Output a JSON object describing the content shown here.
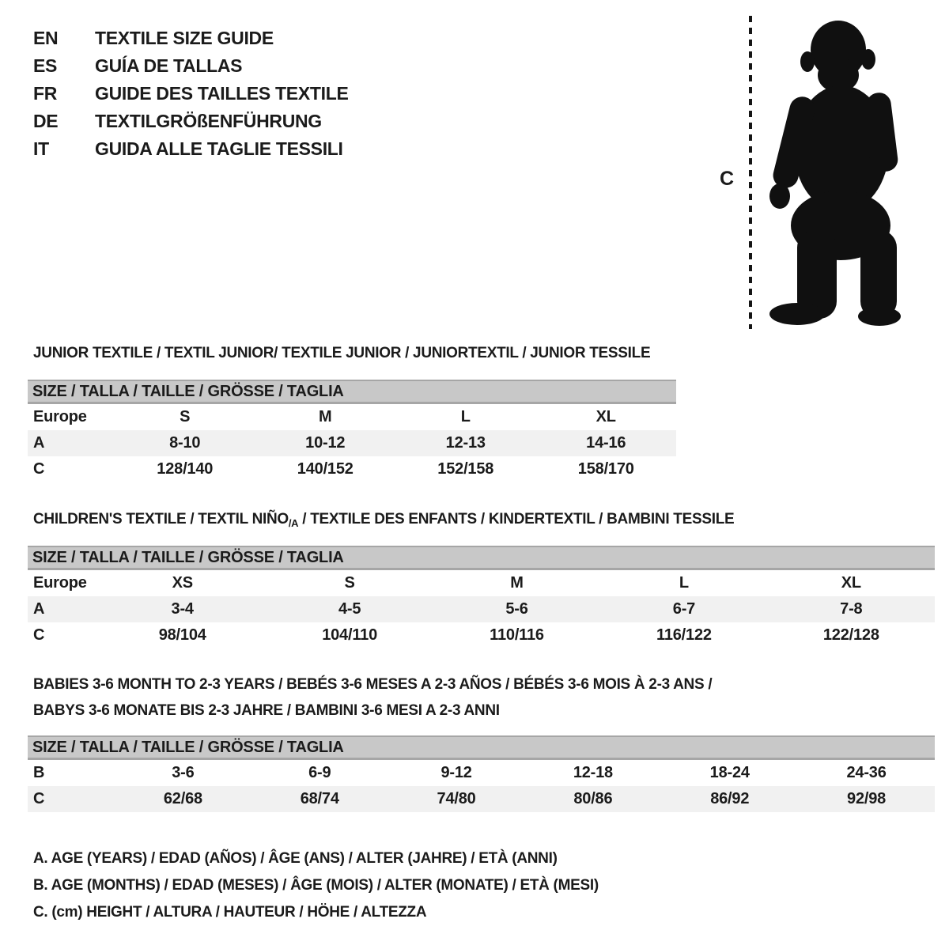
{
  "languages": [
    {
      "code": "EN",
      "title": "TEXTILE SIZE GUIDE"
    },
    {
      "code": "ES",
      "title": "GUÍA DE TALLAS"
    },
    {
      "code": "FR",
      "title": "GUIDE DES TAILLES TEXTILE"
    },
    {
      "code": "DE",
      "title": "TEXTILGRÖßENFÜHRUNG"
    },
    {
      "code": "IT",
      "title": "GUIDA ALLE TAGLIE TESSILI"
    }
  ],
  "figure": {
    "label": "C",
    "icon": "baby-silhouette"
  },
  "colors": {
    "header_band": "#c8c8c8",
    "header_band_border": "#a6a6a6",
    "shaded_row": "#f1f1f1",
    "text": "#1b1b1b"
  },
  "junior": {
    "section_title": "JUNIOR TEXTILE / TEXTIL JUNIOR/ TEXTILE JUNIOR / JUNIORTEXTIL / JUNIOR TESSILE",
    "size_header": "SIZE / TALLA / TAILLE / GRÖSSE / TAGLIA",
    "rows": [
      {
        "label": "Europe",
        "shaded": false,
        "values": [
          "S",
          "M",
          "L",
          "XL"
        ]
      },
      {
        "label": "A",
        "shaded": true,
        "values": [
          "8-10",
          "10-12",
          "12-13",
          "14-16"
        ]
      },
      {
        "label": "C",
        "shaded": false,
        "values": [
          "128/140",
          "140/152",
          "152/158",
          "158/170"
        ]
      }
    ]
  },
  "children": {
    "section_title_pre": "CHILDREN'S TEXTILE / TEXTIL NIÑO",
    "section_title_sub": "/A",
    "section_title_post": " / TEXTILE DES ENFANTS / KINDERTEXTIL / BAMBINI TESSILE",
    "size_header": "SIZE / TALLA / TAILLE / GRÖSSE / TAGLIA",
    "rows": [
      {
        "label": "Europe",
        "shaded": false,
        "values": [
          "XS",
          "S",
          "M",
          "L",
          "XL"
        ]
      },
      {
        "label": "A",
        "shaded": true,
        "values": [
          "3-4",
          "4-5",
          "5-6",
          "6-7",
          "7-8"
        ]
      },
      {
        "label": "C",
        "shaded": false,
        "values": [
          "98/104",
          "104/110",
          "110/116",
          "116/122",
          "122/128"
        ]
      }
    ]
  },
  "babies": {
    "section_title_line1": "BABIES 3-6 MONTH TO 2-3 YEARS / BEBÉS 3-6 MESES A 2-3 AÑOS / BÉBÉS 3-6 MOIS À 2-3 ANS /",
    "section_title_line2": "BABYS 3-6 MONATE BIS 2-3 JAHRE / BAMBINI 3-6 MESI A 2-3 ANNI",
    "size_header": "SIZE / TALLA / TAILLE / GRÖSSE / TAGLIA",
    "rows": [
      {
        "label": "B",
        "shaded": false,
        "values": [
          "3-6",
          "6-9",
          "9-12",
          "12-18",
          "18-24",
          "24-36"
        ]
      },
      {
        "label": "C",
        "shaded": true,
        "values": [
          "62/68",
          "68/74",
          "74/80",
          "80/86",
          "86/92",
          "92/98"
        ]
      }
    ]
  },
  "legend": [
    "A. AGE (YEARS) / EDAD (AÑOS) / ÂGE (ANS) / ALTER (JAHRE) / ETÀ (ANNI)",
    "B. AGE (MONTHS) / EDAD (MESES) / ÂGE (MOIS) / ALTER (MONATE) / ETÀ (MESI)",
    "C. (cm) HEIGHT / ALTURA / HAUTEUR / HÖHE / ALTEZZA"
  ]
}
